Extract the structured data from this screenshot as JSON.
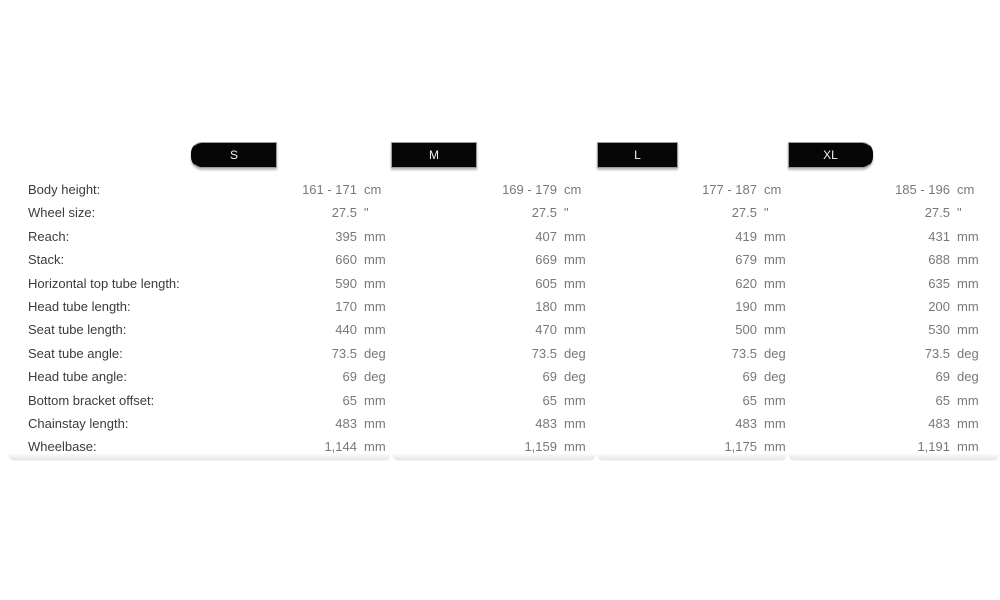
{
  "size_tabs": [
    {
      "label": "S"
    },
    {
      "label": "M"
    },
    {
      "label": "L"
    },
    {
      "label": "XL"
    }
  ],
  "colors": {
    "tab_background": "#060606",
    "tab_text": "#f4f4f4",
    "label_text": "#3b3b3b",
    "value_text": "#787878",
    "page_background": "#ffffff"
  },
  "chart_data": {
    "type": "table",
    "columns": [
      "S",
      "M",
      "L",
      "XL"
    ],
    "rows": [
      {
        "label": "Body height:",
        "unit": "cm",
        "values": [
          "161 - 171",
          "169 - 179",
          "177 - 187",
          "185 - 196"
        ]
      },
      {
        "label": "Wheel size:",
        "unit": "\"",
        "values": [
          "27.5",
          "27.5",
          "27.5",
          "27.5"
        ]
      },
      {
        "label": "Reach:",
        "unit": "mm",
        "values": [
          "395",
          "407",
          "419",
          "431"
        ]
      },
      {
        "label": "Stack:",
        "unit": "mm",
        "values": [
          "660",
          "669",
          "679",
          "688"
        ]
      },
      {
        "label": "Horizontal top tube length:",
        "unit": "mm",
        "values": [
          "590",
          "605",
          "620",
          "635"
        ]
      },
      {
        "label": "Head tube length:",
        "unit": "mm",
        "values": [
          "170",
          "180",
          "190",
          "200"
        ]
      },
      {
        "label": "Seat tube length:",
        "unit": "mm",
        "values": [
          "440",
          "470",
          "500",
          "530"
        ]
      },
      {
        "label": "Seat tube angle:",
        "unit": "deg",
        "values": [
          "73.5",
          "73.5",
          "73.5",
          "73.5"
        ]
      },
      {
        "label": "Head tube angle:",
        "unit": "deg",
        "values": [
          "69",
          "69",
          "69",
          "69"
        ]
      },
      {
        "label": "Bottom bracket offset:",
        "unit": "mm",
        "values": [
          "65",
          "65",
          "65",
          "65"
        ]
      },
      {
        "label": "Chainstay length:",
        "unit": "mm",
        "values": [
          "483",
          "483",
          "483",
          "483"
        ]
      },
      {
        "label": "Wheelbase:",
        "unit": "mm",
        "values": [
          "1,144",
          "1,159",
          "1,175",
          "1,191"
        ]
      }
    ]
  }
}
